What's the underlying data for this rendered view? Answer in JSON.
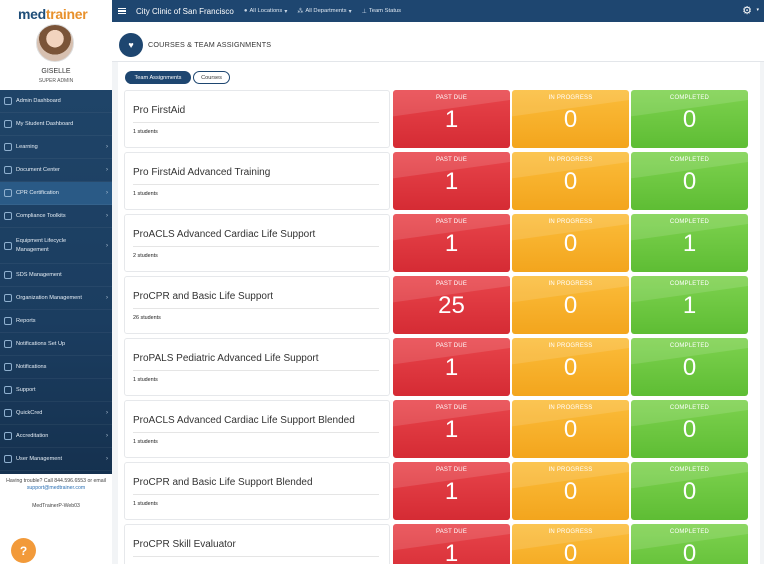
{
  "brand": {
    "name_main": "med",
    "name_accent": "trainer"
  },
  "user": {
    "name": "GISELLE",
    "role": "SUPER ADMIN"
  },
  "nav": [
    {
      "label": "Admin Dashboard",
      "icon": "dashboard-icon",
      "chevron": false
    },
    {
      "label": "My Student Dashboard",
      "icon": "student-icon",
      "chevron": false
    },
    {
      "label": "Learning",
      "icon": "book-icon",
      "chevron": true
    },
    {
      "label": "Document Center",
      "icon": "document-icon",
      "chevron": true
    },
    {
      "label": "CPR Certification",
      "icon": "heart-icon",
      "chevron": true,
      "active": true
    },
    {
      "label": "Compliance Toolkits",
      "icon": "toolkit-icon",
      "chevron": true
    },
    {
      "label": "Equipment Lifecycle Management",
      "icon": "equipment-icon",
      "chevron": true
    },
    {
      "label": "SDS Management",
      "icon": "sds-icon",
      "chevron": false
    },
    {
      "label": "Organization Management",
      "icon": "organization-icon",
      "chevron": true
    },
    {
      "label": "Reports",
      "icon": "reports-icon",
      "chevron": false
    },
    {
      "label": "Notifications Set Up",
      "icon": "notification-setup-icon",
      "chevron": false
    },
    {
      "label": "Notifications",
      "icon": "bell-icon",
      "chevron": false
    },
    {
      "label": "Support",
      "icon": "headset-icon",
      "chevron": false
    },
    {
      "label": "QuickCred",
      "icon": "quickcred-icon",
      "chevron": true
    },
    {
      "label": "Accreditation",
      "icon": "accreditation-icon",
      "chevron": true
    },
    {
      "label": "User Management",
      "icon": "users-icon",
      "chevron": true
    }
  ],
  "help": {
    "text": "Having trouble? Call 844.596.6553 or email",
    "email": "support@medtrainer.com",
    "version": "MedTrainerP-Web03",
    "button": "?"
  },
  "topbar": {
    "clinic": "City Clinic of San Francisco",
    "locations": "All Locations",
    "departments": "All Departments",
    "team_status": "Team Status"
  },
  "header": {
    "title": "COURSES & TEAM ASSIGNMENTS"
  },
  "tabs": {
    "team_assignments": "Team Assignments",
    "courses": "Courses"
  },
  "status_labels": {
    "past_due": "PAST DUE",
    "in_progress": "IN PROGRESS",
    "completed": "COMPLETED"
  },
  "colors": {
    "past_due": "#d52b34",
    "in_progress": "#f3a51d",
    "completed": "#5ebd34",
    "nav_bg": "#1f4468",
    "topbar": "#1e4670"
  },
  "courses": [
    {
      "name": "Pro FirstAid",
      "students": "1 students",
      "past_due": "1",
      "in_progress": "0",
      "completed": "0"
    },
    {
      "name": "Pro FirstAid Advanced Training",
      "students": "1 students",
      "past_due": "1",
      "in_progress": "0",
      "completed": "0"
    },
    {
      "name": "ProACLS Advanced Cardiac Life Support",
      "students": "2 students",
      "past_due": "1",
      "in_progress": "0",
      "completed": "1"
    },
    {
      "name": "ProCPR and Basic Life Support",
      "students": "26 students",
      "past_due": "25",
      "in_progress": "0",
      "completed": "1"
    },
    {
      "name": "ProPALS Pediatric Advanced Life Support",
      "students": "1 students",
      "past_due": "1",
      "in_progress": "0",
      "completed": "0"
    },
    {
      "name": "ProACLS Advanced Cardiac Life Support Blended",
      "students": "1 students",
      "past_due": "1",
      "in_progress": "0",
      "completed": "0"
    },
    {
      "name": "ProCPR and Basic Life Support Blended",
      "students": "1 students",
      "past_due": "1",
      "in_progress": "0",
      "completed": "0"
    },
    {
      "name": "ProCPR Skill Evaluator",
      "students": "",
      "past_due": "1",
      "in_progress": "0",
      "completed": "0"
    }
  ]
}
